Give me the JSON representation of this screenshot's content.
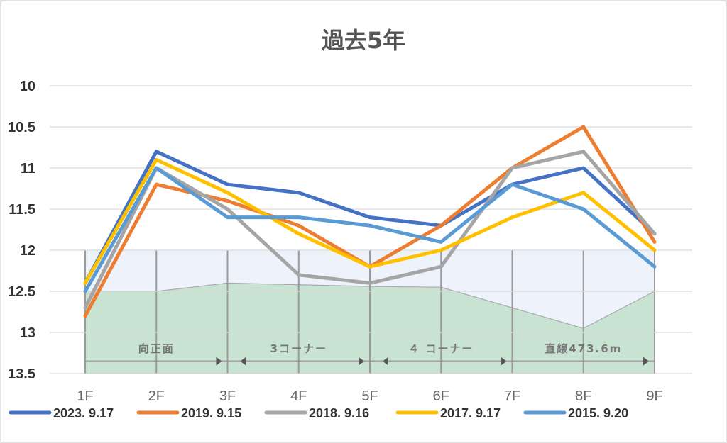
{
  "chart_data": {
    "type": "line",
    "title": "過去5年",
    "xlabel": "",
    "ylabel": "",
    "categories": [
      "1F",
      "2F",
      "3F",
      "4F",
      "5F",
      "6F",
      "7F",
      "8F",
      "9F"
    ],
    "ylim": [
      10,
      13.5
    ],
    "y_inverted": true,
    "yticks": [
      "10",
      "10.5",
      "11",
      "11.5",
      "12",
      "12.5",
      "13",
      "13.5"
    ],
    "grid": true,
    "legend_position": "bottom",
    "series": [
      {
        "name": "2023. 9.17",
        "color": "#4472C4",
        "values": [
          12.4,
          10.8,
          11.2,
          11.3,
          11.6,
          11.7,
          11.2,
          11.0,
          11.8
        ]
      },
      {
        "name": "2019. 9.15",
        "color": "#ED7D31",
        "values": [
          12.8,
          11.2,
          11.4,
          11.7,
          12.2,
          11.7,
          11.0,
          10.5,
          11.9
        ]
      },
      {
        "name": "2018. 9.16",
        "color": "#A5A5A5",
        "values": [
          12.7,
          11.0,
          11.5,
          12.3,
          12.4,
          12.2,
          11.0,
          10.8,
          11.8
        ]
      },
      {
        "name": "2017. 9.17",
        "color": "#FFC000",
        "values": [
          12.4,
          10.9,
          11.3,
          11.8,
          12.2,
          12.0,
          11.6,
          11.3,
          12.0
        ]
      },
      {
        "name": "2015. 9.20",
        "color": "#5B9BD5",
        "values": [
          12.5,
          11.0,
          11.6,
          11.6,
          11.7,
          11.9,
          11.2,
          11.5,
          12.2
        ]
      }
    ],
    "course_sections": [
      {
        "label": "向正面",
        "from": "1F",
        "to": "3F",
        "arrow": "right"
      },
      {
        "label": "3コーナー",
        "from": "3F",
        "to": "5F",
        "arrow": "both"
      },
      {
        "label": "４ コーナー",
        "from": "5F",
        "to": "7F",
        "arrow": "both"
      },
      {
        "label": "直線473.6m",
        "from": "7F",
        "to": "9F",
        "arrow": "right"
      }
    ],
    "course_profile": [
      12.5,
      12.5,
      12.4,
      12.42,
      12.44,
      12.45,
      12.7,
      12.95,
      12.5
    ]
  }
}
